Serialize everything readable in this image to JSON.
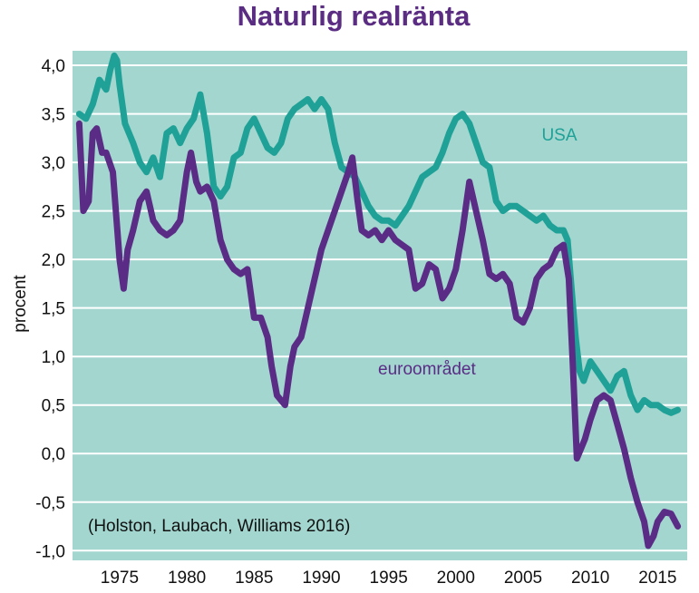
{
  "chart_data": {
    "type": "line",
    "title": "Naturlig realränta",
    "xlabel": "",
    "ylabel": "procent",
    "xlim": [
      1971.5,
      2017.2
    ],
    "ylim": [
      -1.1,
      4.15
    ],
    "x_ticks": [
      1975,
      1980,
      1985,
      1990,
      1995,
      2000,
      2005,
      2010,
      2015
    ],
    "x_tick_labels": [
      "1975",
      "1980",
      "1985",
      "1990",
      "1995",
      "2000",
      "2005",
      "2010",
      "2015"
    ],
    "y_ticks": [
      4.0,
      3.5,
      3.0,
      2.5,
      2.0,
      1.5,
      1.0,
      0.5,
      0.0,
      -0.5,
      -1.0
    ],
    "y_tick_labels": [
      "4,0",
      "3,5",
      "3,0",
      "2,5",
      "2,0",
      "1,5",
      "1,0",
      "0,5",
      "0,0",
      "-0,5",
      "-1,0"
    ],
    "grid": "horizontal",
    "background_color": "#a2d6cf",
    "title_color": "#5a2d82",
    "annotation": "(Holston, Laubach, Williams 2016)",
    "series": [
      {
        "name": "USA",
        "color": "#1fa197",
        "x": [
          1972.0,
          1972.5,
          1973.0,
          1973.5,
          1974.0,
          1974.3,
          1974.6,
          1974.8,
          1975.0,
          1975.4,
          1976.0,
          1976.5,
          1977.0,
          1977.5,
          1978.0,
          1978.5,
          1979.0,
          1979.5,
          1980.0,
          1980.5,
          1981.0,
          1981.5,
          1982.0,
          1982.5,
          1983.0,
          1983.5,
          1984.0,
          1984.5,
          1985.0,
          1985.5,
          1986.0,
          1986.5,
          1987.0,
          1987.5,
          1988.0,
          1988.5,
          1989.0,
          1989.5,
          1990.0,
          1990.5,
          1991.0,
          1991.5,
          1992.0,
          1992.5,
          1993.0,
          1993.5,
          1994.0,
          1994.5,
          1995.0,
          1995.5,
          1996.0,
          1996.5,
          1997.0,
          1997.5,
          1998.0,
          1998.5,
          1999.0,
          1999.5,
          2000.0,
          2000.5,
          2001.0,
          2001.5,
          2002.0,
          2002.5,
          2003.0,
          2003.5,
          2004.0,
          2004.5,
          2005.0,
          2005.5,
          2006.0,
          2006.5,
          2007.0,
          2007.5,
          2008.0,
          2008.3,
          2008.6,
          2008.9,
          2009.2,
          2009.5,
          2010.0,
          2010.5,
          2011.0,
          2011.5,
          2012.0,
          2012.5,
          2013.0,
          2013.5,
          2014.0,
          2014.5,
          2015.0,
          2015.5,
          2016.0,
          2016.5
        ],
        "values": [
          3.5,
          3.45,
          3.6,
          3.85,
          3.75,
          3.95,
          4.1,
          4.05,
          3.8,
          3.4,
          3.2,
          3.0,
          2.9,
          3.05,
          2.85,
          3.3,
          3.35,
          3.2,
          3.35,
          3.45,
          3.7,
          3.3,
          2.75,
          2.65,
          2.75,
          3.05,
          3.1,
          3.35,
          3.45,
          3.3,
          3.15,
          3.1,
          3.2,
          3.45,
          3.55,
          3.6,
          3.65,
          3.55,
          3.65,
          3.55,
          3.2,
          2.95,
          2.9,
          2.85,
          2.7,
          2.55,
          2.45,
          2.4,
          2.4,
          2.35,
          2.45,
          2.55,
          2.7,
          2.85,
          2.9,
          2.95,
          3.1,
          3.3,
          3.45,
          3.5,
          3.4,
          3.2,
          3.0,
          2.95,
          2.6,
          2.5,
          2.55,
          2.55,
          2.5,
          2.45,
          2.4,
          2.45,
          2.35,
          2.3,
          2.3,
          2.2,
          1.7,
          1.2,
          0.85,
          0.75,
          0.95,
          0.85,
          0.75,
          0.65,
          0.8,
          0.85,
          0.6,
          0.45,
          0.55,
          0.5,
          0.5,
          0.45,
          0.42,
          0.45
        ]
      },
      {
        "name": "euroområdet",
        "color": "#5b2c86",
        "x": [
          1972.0,
          1972.3,
          1972.7,
          1973.0,
          1973.3,
          1973.7,
          1974.0,
          1974.5,
          1975.0,
          1975.3,
          1975.6,
          1976.0,
          1976.5,
          1977.0,
          1977.5,
          1978.0,
          1978.5,
          1979.0,
          1979.5,
          1980.0,
          1980.3,
          1980.7,
          1981.0,
          1981.5,
          1982.0,
          1982.5,
          1983.0,
          1983.5,
          1984.0,
          1984.5,
          1985.0,
          1985.5,
          1986.0,
          1986.3,
          1986.7,
          1987.0,
          1987.3,
          1987.7,
          1988.0,
          1988.5,
          1989.0,
          1989.5,
          1990.0,
          1990.5,
          1991.0,
          1991.5,
          1992.0,
          1992.3,
          1992.7,
          1993.0,
          1993.5,
          1994.0,
          1994.5,
          1995.0,
          1995.5,
          1996.0,
          1996.5,
          1997.0,
          1997.5,
          1998.0,
          1998.5,
          1999.0,
          1999.5,
          2000.0,
          2000.5,
          2001.0,
          2001.5,
          2002.0,
          2002.5,
          2003.0,
          2003.5,
          2004.0,
          2004.5,
          2005.0,
          2005.5,
          2006.0,
          2006.5,
          2007.0,
          2007.5,
          2008.0,
          2008.4,
          2008.7,
          2009.0,
          2009.3,
          2009.6,
          2010.0,
          2010.5,
          2011.0,
          2011.5,
          2012.0,
          2012.5,
          2013.0,
          2013.5,
          2014.0,
          2014.3,
          2014.7,
          2015.0,
          2015.5,
          2016.0,
          2016.5
        ],
        "values": [
          3.4,
          2.5,
          2.6,
          3.3,
          3.35,
          3.1,
          3.1,
          2.9,
          2.0,
          1.7,
          2.1,
          2.3,
          2.6,
          2.7,
          2.4,
          2.3,
          2.25,
          2.3,
          2.4,
          2.9,
          3.1,
          2.8,
          2.7,
          2.75,
          2.6,
          2.2,
          2.0,
          1.9,
          1.85,
          1.9,
          1.4,
          1.4,
          1.2,
          0.9,
          0.6,
          0.55,
          0.5,
          0.9,
          1.1,
          1.2,
          1.5,
          1.8,
          2.1,
          2.3,
          2.5,
          2.7,
          2.9,
          3.05,
          2.6,
          2.3,
          2.25,
          2.3,
          2.2,
          2.3,
          2.2,
          2.15,
          2.1,
          1.7,
          1.75,
          1.95,
          1.9,
          1.6,
          1.7,
          1.9,
          2.3,
          2.8,
          2.5,
          2.2,
          1.85,
          1.8,
          1.85,
          1.75,
          1.4,
          1.35,
          1.5,
          1.8,
          1.9,
          1.95,
          2.1,
          2.15,
          1.8,
          0.9,
          -0.05,
          0.05,
          0.15,
          0.35,
          0.55,
          0.6,
          0.55,
          0.3,
          0.05,
          -0.25,
          -0.5,
          -0.7,
          -0.95,
          -0.85,
          -0.7,
          -0.6,
          -0.62,
          -0.75
        ]
      }
    ]
  }
}
